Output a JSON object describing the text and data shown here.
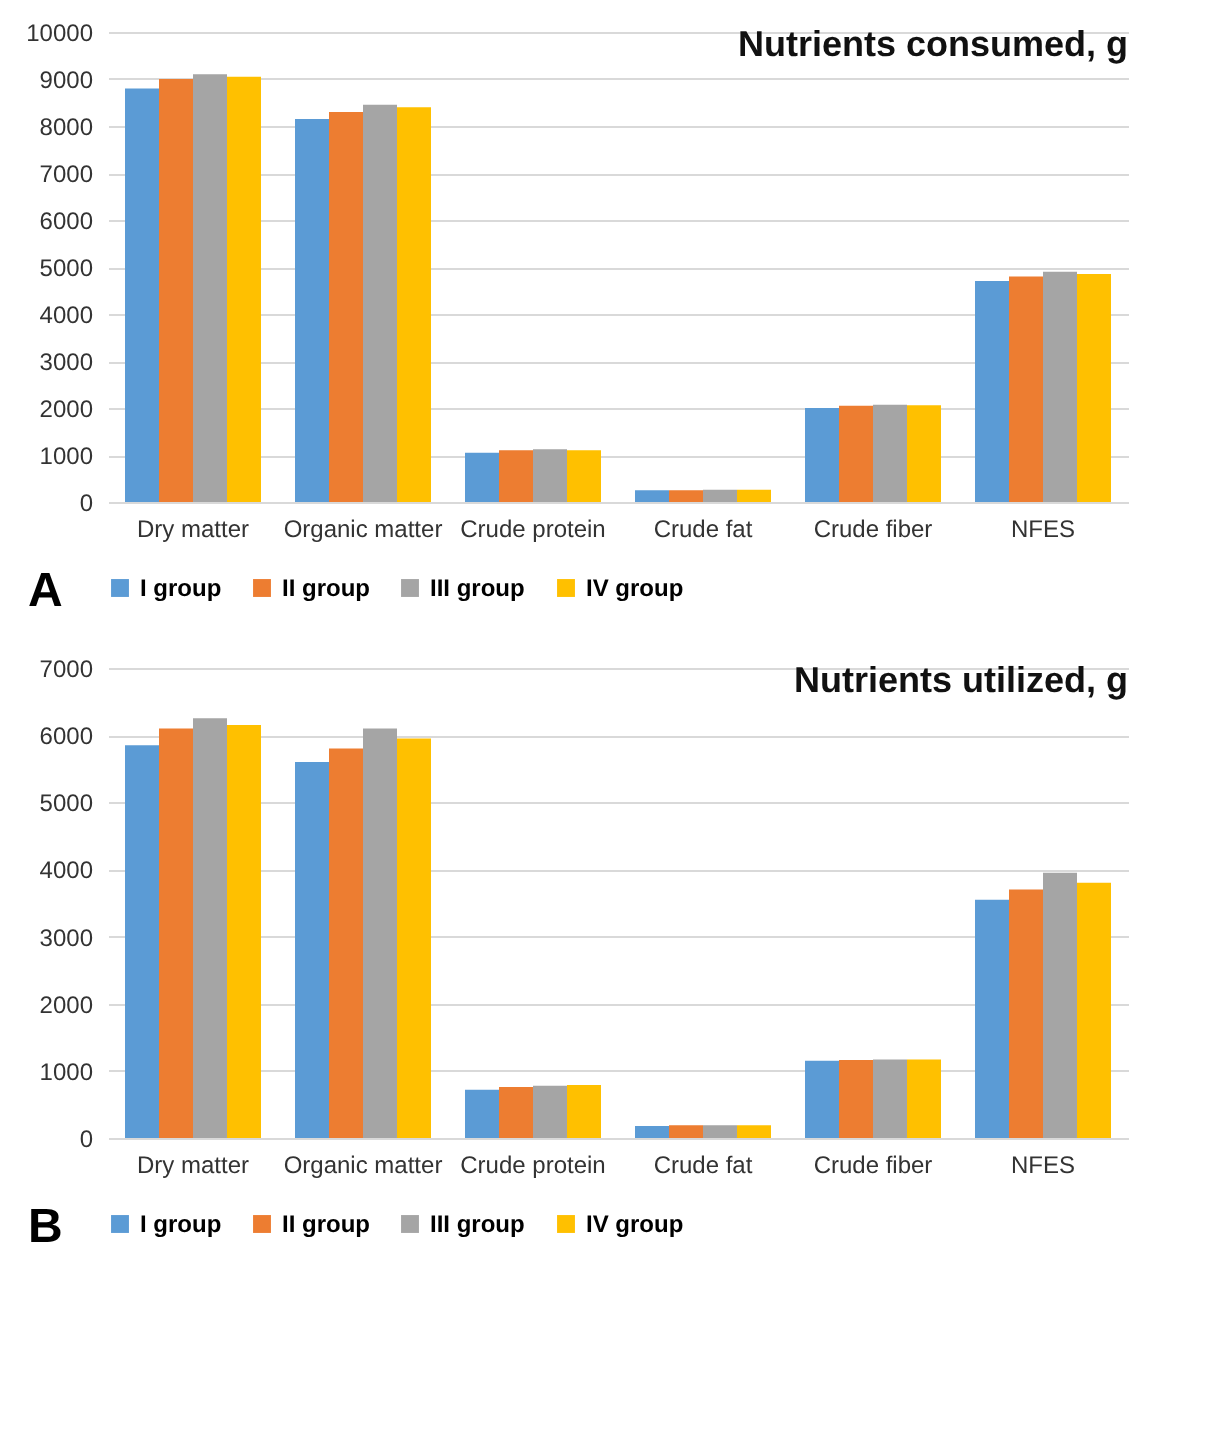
{
  "chart_data": [
    {
      "type": "bar",
      "title": "Nutrients consumed, g",
      "annotations": [
        "A"
      ],
      "categories": [
        "Dry matter",
        "Organic matter",
        "Crude protein",
        "Crude fat",
        "Crude fiber",
        "NFES"
      ],
      "series": [
        {
          "name": "I group",
          "color": "#5b9bd5",
          "values": [
            8800,
            8150,
            1050,
            250,
            2000,
            4700
          ]
        },
        {
          "name": "II group",
          "color": "#ed7d31",
          "values": [
            9000,
            8300,
            1100,
            250,
            2050,
            4800
          ]
        },
        {
          "name": "III group",
          "color": "#a5a5a5",
          "values": [
            9100,
            8450,
            1120,
            260,
            2070,
            4900
          ]
        },
        {
          "name": "IV group",
          "color": "#ffc000",
          "values": [
            9050,
            8400,
            1100,
            260,
            2060,
            4850
          ]
        }
      ],
      "ylim": [
        0,
        10000
      ],
      "yticks": [
        0,
        1000,
        2000,
        3000,
        4000,
        5000,
        6000,
        7000,
        8000,
        9000,
        10000
      ],
      "grid": "y",
      "legend": "bottom"
    },
    {
      "type": "bar",
      "title": "Nutrients utilized, g",
      "annotations": [
        "B"
      ],
      "categories": [
        "Dry matter",
        "Organic matter",
        "Crude protein",
        "Crude fat",
        "Crude fiber",
        "NFES"
      ],
      "series": [
        {
          "name": "I group",
          "color": "#5b9bd5",
          "values": [
            5850,
            5600,
            720,
            180,
            1150,
            3550
          ]
        },
        {
          "name": "II group",
          "color": "#ed7d31",
          "values": [
            6100,
            5800,
            760,
            190,
            1160,
            3700
          ]
        },
        {
          "name": "III group",
          "color": "#a5a5a5",
          "values": [
            6250,
            6100,
            780,
            190,
            1170,
            3950
          ]
        },
        {
          "name": "IV group",
          "color": "#ffc000",
          "values": [
            6150,
            5950,
            790,
            190,
            1170,
            3800
          ]
        }
      ],
      "ylim": [
        0,
        7000
      ],
      "yticks": [
        0,
        1000,
        2000,
        3000,
        4000,
        5000,
        6000,
        7000
      ],
      "grid": "y",
      "legend": "bottom"
    }
  ]
}
